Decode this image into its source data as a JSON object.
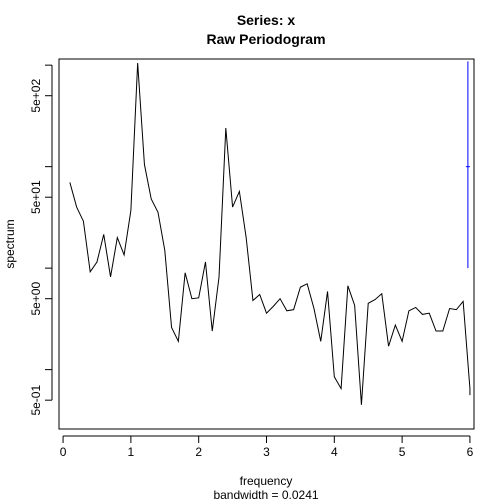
{
  "chart_data": {
    "type": "line",
    "title": "Series: x",
    "subtitle": "Raw Periodogram",
    "xlabel": "frequency",
    "xsublabel": "bandwidth = 0.0241",
    "ylabel": "spectrum",
    "log_y": true,
    "xlim": [
      -0.06,
      6.06
    ],
    "ylim": [
      0.26,
      1150
    ],
    "x_ticks": [
      0,
      1,
      2,
      3,
      4,
      5,
      6
    ],
    "x_tick_labels": [
      "0",
      "1",
      "2",
      "3",
      "4",
      "5",
      "6"
    ],
    "y_ticks": [
      0.5,
      5,
      50,
      500
    ],
    "y_tick_labels": [
      "5e-01",
      "5e+00",
      "5e+01",
      "5e+02"
    ],
    "minor_y_ticks": [
      1,
      10,
      100,
      1000
    ],
    "series": [
      {
        "color": "#000000",
        "x": [
          0.1,
          0.2,
          0.3,
          0.4,
          0.5,
          0.6,
          0.7,
          0.8,
          0.9,
          1.0,
          1.1,
          1.2,
          1.3,
          1.4,
          1.5,
          1.6,
          1.7,
          1.8,
          1.9,
          2.0,
          2.1,
          2.2,
          2.3,
          2.4,
          2.5,
          2.6,
          2.7,
          2.8,
          2.9,
          3.0,
          3.1,
          3.2,
          3.3,
          3.4,
          3.5,
          3.6,
          3.7,
          3.8,
          3.9,
          4.0,
          4.1,
          4.2,
          4.3,
          4.4,
          4.5,
          4.6,
          4.7,
          4.8,
          4.9,
          5.0,
          5.1,
          5.2,
          5.3,
          5.4,
          5.5,
          5.6,
          5.7,
          5.8,
          5.9,
          6.0,
          6.0
        ],
        "values": [
          70,
          40,
          29,
          9.2,
          11.5,
          21.5,
          8.2,
          20,
          13.5,
          37,
          1050,
          105,
          48,
          35.5,
          15,
          2.6,
          1.9,
          9,
          5,
          5.1,
          11.5,
          2.4,
          8.2,
          240,
          40,
          57,
          20,
          4.8,
          5.5,
          3.6,
          4.2,
          5,
          3.8,
          3.9,
          6.5,
          7,
          4,
          1.9,
          5.9,
          0.85,
          0.65,
          6.7,
          4.3,
          0.45,
          4.5,
          4.9,
          5.6,
          1.7,
          2.75,
          1.9,
          3.8,
          4.1,
          3.5,
          3.6,
          2.4,
          2.4,
          4,
          3.9,
          4.7,
          0.65,
          0.56
        ],
        "note": ""
      },
      {
        "color": "#0000ff",
        "x": [
          5.97,
          5.97
        ],
        "values": [
          10,
          1090
        ],
        "center": 100
      }
    ]
  }
}
